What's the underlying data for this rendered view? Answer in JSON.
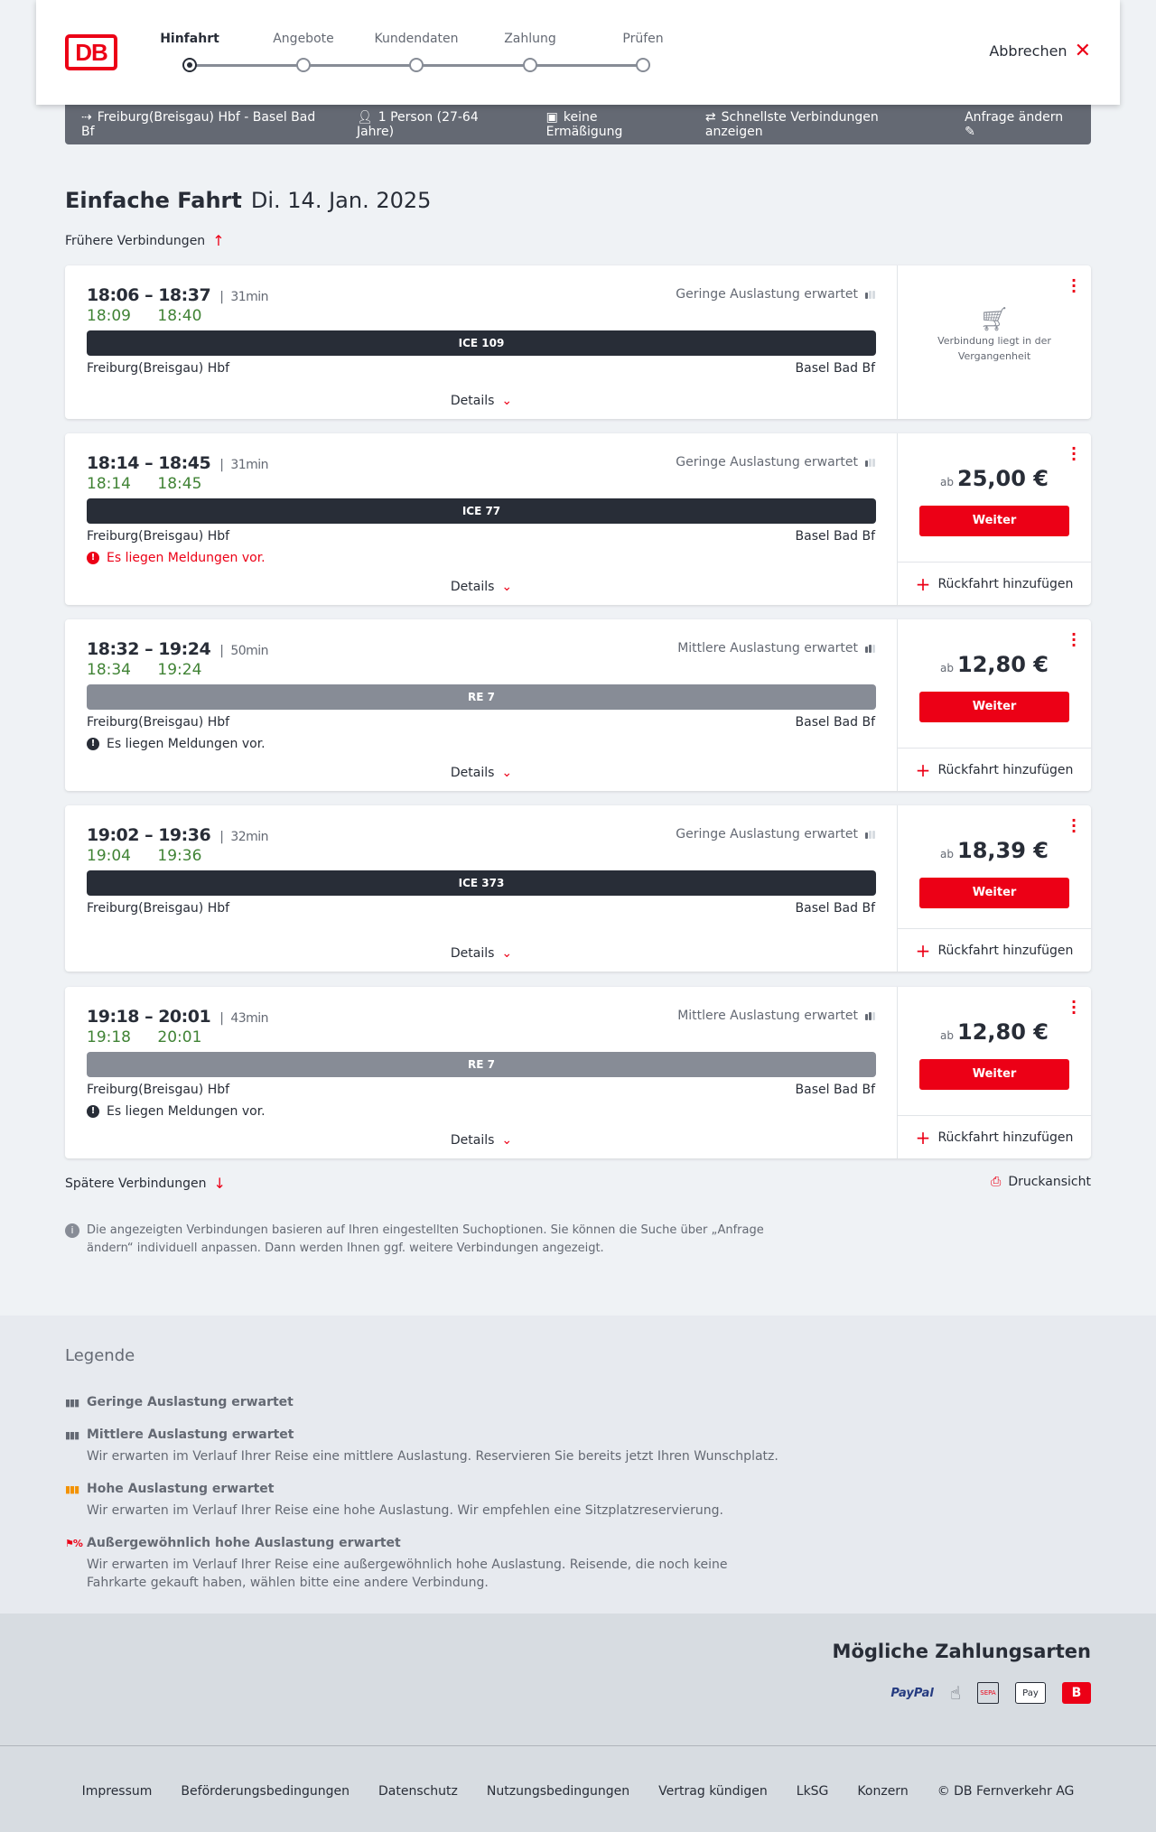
{
  "header": {
    "logo": "DB",
    "cancel": "Abbrechen",
    "steps": [
      "Hinfahrt",
      "Angebote",
      "Kundendaten",
      "Zahlung",
      "Prüfen"
    ],
    "active_step": 0
  },
  "infobar": {
    "route": "Freiburg(Breisgau) Hbf - Basel Bad Bf",
    "persons": "1 Person (27-64 Jahre)",
    "discount": "keine Ermäßigung",
    "option": "Schnellste Verbindungen anzeigen",
    "edit": "Anfrage ändern"
  },
  "page": {
    "title": "Einfache Fahrt",
    "date": "Di. 14. Jan. 2025",
    "earlier": "Frühere Verbindungen",
    "later": "Spätere Verbindungen",
    "print": "Druckansicht",
    "note": "Die angezeigten Verbindungen basieren auf Ihren eingestellten Suchoptionen. Sie können die Suche über „Anfrage ändern“ individuell anpassen. Dann werden Ihnen ggf. weitere Verbindungen angezeigt."
  },
  "colors": {
    "accent": "#ec0016",
    "realtime": "#408335",
    "ice": "#282d37",
    "regional": "#878c96"
  },
  "labels": {
    "details": "Details",
    "ab": "ab",
    "weiter": "Weiter",
    "return": "Rückfahrt hinzufügen",
    "past": "Verbindung liegt in der Vergangenheit"
  },
  "connections": [
    {
      "times": "18:06 – 18:37",
      "duration": "31min",
      "rt_dep": "18:09",
      "rt_arr": "18:40",
      "load": "Geringe Auslastung erwartet",
      "load_level": 1,
      "train": "ICE 109",
      "type": "ice",
      "from": "Freiburg(Breisgau) Hbf",
      "to": "Basel Bad Bf",
      "message": "",
      "past": true
    },
    {
      "times": "18:14 – 18:45",
      "duration": "31min",
      "rt_dep": "18:14",
      "rt_arr": "18:45",
      "load": "Geringe Auslastung erwartet",
      "load_level": 1,
      "train": "ICE 77",
      "type": "ice",
      "from": "Freiburg(Breisgau) Hbf",
      "to": "Basel Bad Bf",
      "message": "Es liegen Meldungen vor.",
      "message_severity": "error",
      "price": "25,00 €"
    },
    {
      "times": "18:32 – 19:24",
      "duration": "50min",
      "rt_dep": "18:34",
      "rt_arr": "19:24",
      "load": "Mittlere Auslastung erwartet",
      "load_level": 2,
      "train": "RE 7",
      "type": "regional",
      "from": "Freiburg(Breisgau) Hbf",
      "to": "Basel Bad Bf",
      "message": "Es liegen Meldungen vor.",
      "message_severity": "info",
      "price": "12,80 €"
    },
    {
      "times": "19:02 – 19:36",
      "duration": "32min",
      "rt_dep": "19:04",
      "rt_arr": "19:36",
      "load": "Geringe Auslastung erwartet",
      "load_level": 1,
      "train": "ICE 373",
      "type": "ice",
      "from": "Freiburg(Breisgau) Hbf",
      "to": "Basel Bad Bf",
      "message": "",
      "price": "18,39 €"
    },
    {
      "times": "19:18 – 20:01",
      "duration": "43min",
      "rt_dep": "19:18",
      "rt_arr": "20:01",
      "load": "Mittlere Auslastung erwartet",
      "load_level": 2,
      "train": "RE 7",
      "type": "regional",
      "from": "Freiburg(Breisgau) Hbf",
      "to": "Basel Bad Bf",
      "message": "Es liegen Meldungen vor.",
      "message_severity": "info",
      "price": "12,80 €"
    }
  ],
  "legend": {
    "title": "Legende",
    "items": [
      {
        "title": "Geringe Auslastung erwartet",
        "text": "",
        "color": "#646973"
      },
      {
        "title": "Mittlere Auslastung erwartet",
        "text": "Wir erwarten im Verlauf Ihrer Reise eine mittlere Auslastung. Reservieren Sie bereits jetzt Ihren Wunschplatz.",
        "color": "#646973"
      },
      {
        "title": "Hohe Auslastung erwartet",
        "text": "Wir erwarten im Verlauf Ihrer Reise eine hohe Auslastung. Wir empfehlen eine Sitzplatzreservierung.",
        "color": "#f39200"
      },
      {
        "title": "Außergewöhnlich hohe Auslastung erwartet",
        "text": "Wir erwarten im Verlauf Ihrer Reise eine außergewöhnlich hohe Auslastung. Reisende, die noch keine Fahrkarte gekauft haben, wählen bitte eine andere Verbindung.",
        "color": "#ec0016"
      }
    ]
  },
  "payment": {
    "title": "Mögliche Zahlungsarten",
    "methods": [
      "PayPal",
      "Kreditkarte",
      "SEPA",
      "Apple Pay",
      "DB Bonus"
    ]
  },
  "footer": {
    "links": [
      "Impressum",
      "Beförderungsbedingungen",
      "Datenschutz",
      "Nutzungsbedingungen",
      "Vertrag kündigen",
      "LkSG",
      "Konzern",
      "© DB Fernverkehr AG"
    ]
  }
}
